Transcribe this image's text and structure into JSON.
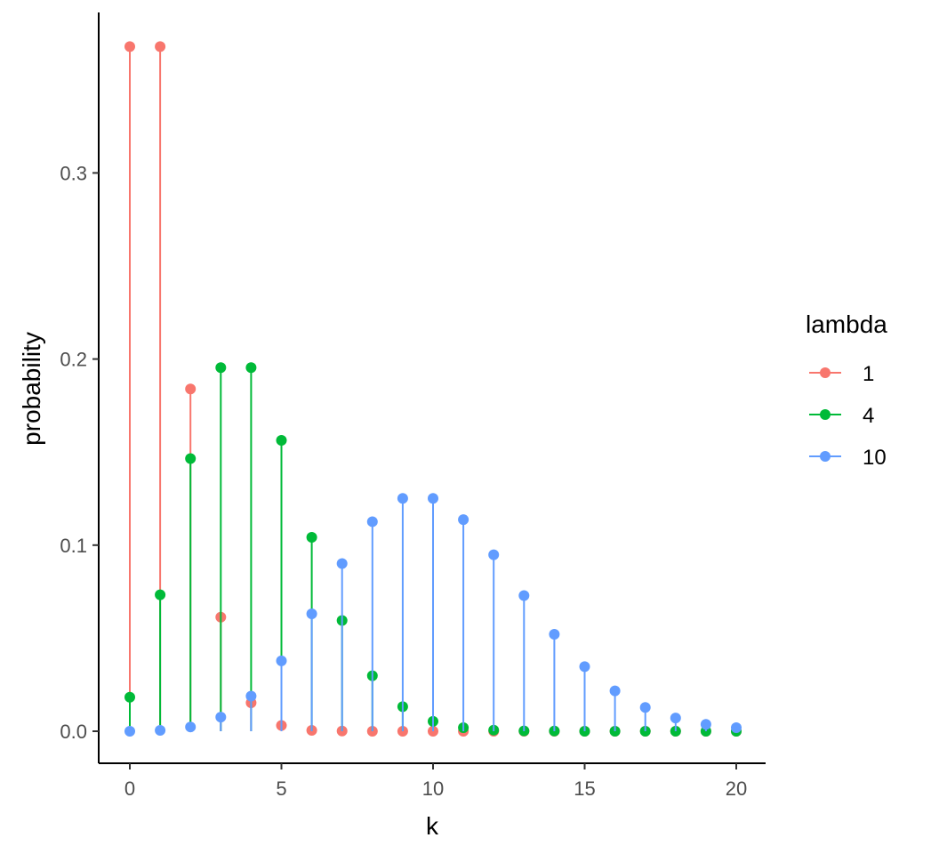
{
  "chart_data": {
    "type": "scatter",
    "subtype": "lollipop",
    "xlabel": "k",
    "ylabel": "probability",
    "xlim": [
      -1,
      21
    ],
    "ylim": [
      -0.017,
      0.386
    ],
    "xticks": [
      "0",
      "5",
      "10",
      "15",
      "20"
    ],
    "yticks": [
      "0.0",
      "0.1",
      "0.2",
      "0.3"
    ],
    "grid": false,
    "legend": {
      "title": "lambda",
      "placement": "right"
    },
    "x": [
      0,
      1,
      2,
      3,
      4,
      5,
      6,
      7,
      8,
      9,
      10,
      11,
      12,
      13,
      14,
      15,
      16,
      17,
      18,
      19,
      20
    ],
    "series": [
      {
        "name": "1",
        "color": "#F8766D",
        "values": [
          0.3679,
          0.3679,
          0.1839,
          0.0613,
          0.0153,
          0.0031,
          0.0005,
          0.0001,
          0.0,
          0.0,
          0.0,
          0.0,
          0.0,
          0.0,
          0.0,
          0.0,
          0.0,
          0.0,
          0.0,
          0.0,
          0.0
        ]
      },
      {
        "name": "4",
        "color": "#00BA38",
        "values": [
          0.0183,
          0.0733,
          0.1465,
          0.1954,
          0.1954,
          0.1563,
          0.1042,
          0.0595,
          0.0298,
          0.0132,
          0.0053,
          0.0019,
          0.0006,
          0.0002,
          0.0001,
          0.0,
          0.0,
          0.0,
          0.0,
          0.0,
          0.0
        ]
      },
      {
        "name": "10",
        "color": "#619CFF",
        "values": [
          0.0,
          0.0005,
          0.0023,
          0.0076,
          0.0189,
          0.0378,
          0.0631,
          0.0901,
          0.1126,
          0.1251,
          0.1251,
          0.1137,
          0.0948,
          0.0729,
          0.0521,
          0.0347,
          0.0217,
          0.0128,
          0.0071,
          0.0037,
          0.0019
        ]
      }
    ]
  }
}
